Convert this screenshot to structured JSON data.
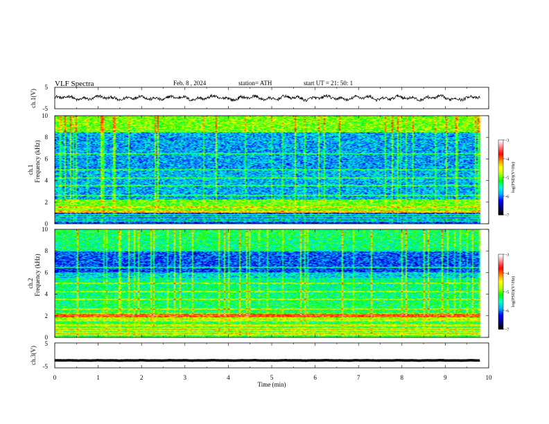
{
  "header": {
    "title": "VLF  Spectra",
    "date": "Feb. 8  , 2024",
    "station": "station= ATH",
    "start": "start  UT  =   21: 50: 1"
  },
  "chart_data": {
    "type": "heatmap",
    "xlabel": "Time  (min)",
    "xlim": [
      0,
      10
    ],
    "xticks": [
      "0",
      "1",
      "2",
      "3",
      "4",
      "5",
      "6",
      "7",
      "8",
      "9",
      "10"
    ],
    "data_end_min": 9.8,
    "panels": [
      {
        "ylabel": "ch.1(V)",
        "kind": "waveform",
        "ylim": [
          -5,
          5
        ],
        "yticks": [
          "5",
          "-5"
        ],
        "mean": 0.0,
        "amplitude": 1.5
      },
      {
        "ylabel_top": "ch.1",
        "ylabel": "Frequency  (kHz)",
        "kind": "spectrogram",
        "ylim": [
          0,
          10
        ],
        "yticks": [
          "0",
          "2",
          "4",
          "6",
          "8",
          "10"
        ]
      },
      {
        "ylabel_top": "ch.2",
        "ylabel": "Frequency  (kHz)",
        "kind": "spectrogram",
        "ylim": [
          0,
          10
        ],
        "yticks": [
          "0",
          "2",
          "4",
          "6",
          "8",
          "10"
        ]
      },
      {
        "ylabel": "ch.3(V)",
        "kind": "waveform",
        "ylim": [
          -5,
          5
        ],
        "yticks": [
          "5",
          "-5"
        ],
        "mean": -2.0,
        "amplitude": 0.1
      }
    ],
    "colorbar": {
      "label": "log(PSD)(V²/Hz)",
      "range": [
        -7,
        -3
      ],
      "ticks": [
        "-3",
        "-4",
        "-5",
        "-6",
        "-7"
      ],
      "colors": [
        "#000000",
        "#00008b",
        "#0000ff",
        "#00b4ff",
        "#00ffd0",
        "#00ff00",
        "#b4ff00",
        "#ffff00",
        "#ff8c00",
        "#ff0000",
        "#ff8080",
        "#ffffff"
      ]
    },
    "spectrogram_style": {
      "ch1_band_khz": [
        1.0,
        2.2
      ],
      "ch2_band_khz": [
        1.6,
        2.2
      ],
      "ch2_peak_khz": 2.0,
      "ch2_peak_log_psd": -3.9,
      "narrowband_lines_khz": [
        0.2,
        0.4,
        0.6,
        0.8,
        1.1,
        1.5,
        2.6,
        3.5,
        4.2,
        5.0,
        6.5
      ]
    }
  }
}
